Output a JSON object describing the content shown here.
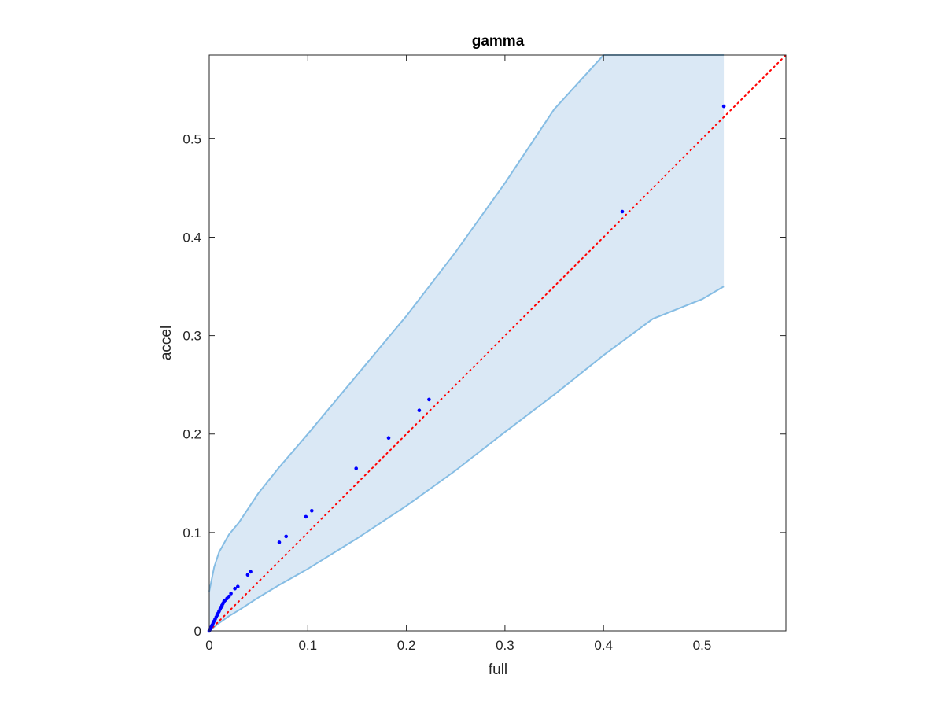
{
  "chart_data": {
    "type": "scatter",
    "title": "gamma",
    "xlabel": "full",
    "ylabel": "accel",
    "xlim": [
      0,
      0.585
    ],
    "ylim": [
      0,
      0.585
    ],
    "xticks": [
      0,
      0.1,
      0.2,
      0.3,
      0.4,
      0.5
    ],
    "yticks": [
      0,
      0.1,
      0.2,
      0.3,
      0.4,
      0.5
    ],
    "xtick_labels": [
      "0",
      "0.1",
      "0.2",
      "0.3",
      "0.4",
      "0.5"
    ],
    "ytick_labels": [
      "0",
      "0.1",
      "0.2",
      "0.3",
      "0.4",
      "0.5"
    ],
    "grid": false,
    "points": {
      "x": [
        0.0,
        0.001,
        0.002,
        0.003,
        0.004,
        0.005,
        0.006,
        0.007,
        0.008,
        0.009,
        0.01,
        0.011,
        0.012,
        0.013,
        0.014,
        0.015,
        0.016,
        0.018,
        0.02,
        0.022,
        0.026,
        0.029,
        0.039,
        0.042,
        0.071,
        0.078,
        0.098,
        0.104,
        0.149,
        0.182,
        0.213,
        0.223,
        0.419,
        0.522
      ],
      "y": [
        0.0,
        0.002,
        0.004,
        0.006,
        0.008,
        0.01,
        0.012,
        0.014,
        0.016,
        0.018,
        0.02,
        0.022,
        0.024,
        0.026,
        0.028,
        0.03,
        0.031,
        0.033,
        0.035,
        0.038,
        0.043,
        0.045,
        0.057,
        0.06,
        0.09,
        0.096,
        0.116,
        0.122,
        0.165,
        0.196,
        0.224,
        0.235,
        0.426,
        0.533
      ],
      "color": "#0000ff"
    },
    "reference_line": {
      "x": [
        0,
        0.585
      ],
      "y": [
        0,
        0.585
      ],
      "style": "dotted",
      "color": "#ff0000"
    },
    "band": {
      "x": [
        0,
        0.005,
        0.01,
        0.02,
        0.03,
        0.05,
        0.07,
        0.1,
        0.15,
        0.2,
        0.25,
        0.3,
        0.35,
        0.4,
        0.45,
        0.5,
        0.522
      ],
      "upper": [
        0.04,
        0.065,
        0.08,
        0.098,
        0.11,
        0.14,
        0.165,
        0.2,
        0.26,
        0.32,
        0.385,
        0.455,
        0.53,
        0.585,
        0.585,
        0.585,
        0.585
      ],
      "lower": [
        0.0,
        0.004,
        0.008,
        0.015,
        0.021,
        0.034,
        0.046,
        0.063,
        0.094,
        0.127,
        0.163,
        0.202,
        0.24,
        0.28,
        0.317,
        0.337,
        0.35
      ],
      "fill_color": "#dae8f5",
      "edge_color": "#86bde4"
    },
    "legend": "none"
  }
}
